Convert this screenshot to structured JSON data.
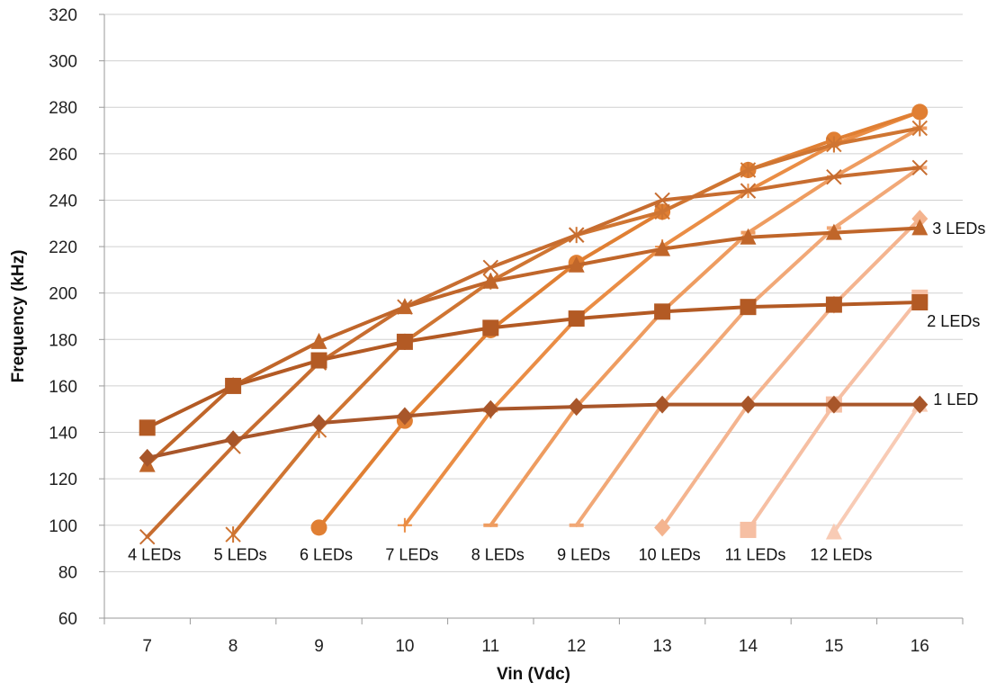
{
  "chart_data": {
    "type": "line",
    "title": "",
    "xlabel": "Vin (Vdc)",
    "ylabel": "Frequency (kHz)",
    "x_ticks": [
      "7",
      "8",
      "9",
      "10",
      "11",
      "12",
      "13",
      "14",
      "15",
      "16"
    ],
    "y_ticks": [
      "60",
      "80",
      "100",
      "120",
      "140",
      "160",
      "180",
      "200",
      "220",
      "240",
      "260",
      "280",
      "300",
      "320"
    ],
    "xlim": [
      6.5,
      16.5
    ],
    "ylim": [
      60,
      320
    ],
    "grid": "horizontal",
    "legend": "none",
    "series": [
      {
        "name": "1 LED",
        "color": "#a8562a",
        "marker": "diamond",
        "x": [
          7,
          8,
          9,
          10,
          11,
          12,
          13,
          14,
          15,
          16
        ],
        "y": [
          129,
          137,
          144,
          147,
          150,
          151,
          152,
          152,
          152,
          152
        ]
      },
      {
        "name": "2 LEDs",
        "color": "#b35a24",
        "marker": "square",
        "x": [
          7,
          8,
          9,
          10,
          11,
          12,
          13,
          14,
          15,
          16
        ],
        "y": [
          142,
          160,
          171,
          179,
          185,
          189,
          192,
          194,
          195,
          196
        ]
      },
      {
        "name": "3 LEDs",
        "color": "#c0662a",
        "marker": "triangle",
        "x": [
          7,
          8,
          9,
          10,
          11,
          12,
          13,
          14,
          15,
          16
        ],
        "y": [
          126,
          160,
          179,
          194,
          205,
          212,
          219,
          224,
          226,
          228
        ]
      },
      {
        "name": "4 LEDs",
        "color": "#c76d30",
        "marker": "x",
        "x": [
          7,
          8,
          9,
          10,
          11,
          12,
          13,
          14,
          15,
          16
        ],
        "y": [
          95,
          134,
          170,
          194,
          211,
          225,
          240,
          244,
          250,
          254
        ]
      },
      {
        "name": "5 LEDs",
        "color": "#cf7532",
        "marker": "asterisk",
        "x": [
          8,
          9,
          10,
          11,
          12,
          13,
          14,
          15,
          16
        ],
        "y": [
          96,
          141,
          179,
          205,
          225,
          235,
          253,
          264,
          271
        ]
      },
      {
        "name": "6 LEDs",
        "color": "#e07f33",
        "marker": "circle",
        "x": [
          9,
          10,
          11,
          12,
          13,
          14,
          15,
          16
        ],
        "y": [
          99,
          145,
          184,
          213,
          235,
          253,
          266,
          278
        ]
      },
      {
        "name": "7 LEDs",
        "color": "#ea8d45",
        "marker": "plus",
        "x": [
          10,
          11,
          12,
          13,
          14,
          15,
          16
        ],
        "y": [
          100,
          149,
          189,
          220,
          244,
          264,
          278
        ]
      },
      {
        "name": "8 LEDs",
        "color": "#ee9c60",
        "marker": "dash",
        "x": [
          11,
          12,
          13,
          14,
          15,
          16
        ],
        "y": [
          100,
          151,
          192,
          226,
          250,
          271
        ]
      },
      {
        "name": "9 LEDs",
        "color": "#f1a877",
        "marker": "dash",
        "x": [
          12,
          13,
          14,
          15,
          16
        ],
        "y": [
          100,
          152,
          194,
          228,
          254
        ]
      },
      {
        "name": "10 LEDs",
        "color": "#f4b48f",
        "marker": "diamond",
        "x": [
          13,
          14,
          15,
          16
        ],
        "y": [
          99,
          152,
          195,
          232
        ]
      },
      {
        "name": "11 LEDs",
        "color": "#f6bfa3",
        "marker": "square",
        "x": [
          14,
          15,
          16
        ],
        "y": [
          98,
          152,
          198
        ]
      },
      {
        "name": "12 LEDs",
        "color": "#f8cbb5",
        "marker": "triangle",
        "x": [
          15,
          16
        ],
        "y": [
          97,
          152
        ]
      }
    ],
    "annotations": [
      {
        "text": "1 LED",
        "anchor": "right of 1 LED series end"
      },
      {
        "text": "2 LEDs",
        "anchor": "right of 2 LEDs series end"
      },
      {
        "text": "3 LEDs",
        "anchor": "right of 3 LEDs series end"
      },
      {
        "text": "4 LEDs",
        "anchor": "below 4 LEDs series start"
      },
      {
        "text": "5 LEDs",
        "anchor": "below 5 LEDs series start"
      },
      {
        "text": "6 LEDs",
        "anchor": "below 6 LEDs series start"
      },
      {
        "text": "7 LEDs",
        "anchor": "below 7 LEDs series start"
      },
      {
        "text": "8 LEDs",
        "anchor": "below 8 LEDs series start"
      },
      {
        "text": "9 LEDs",
        "anchor": "below 9 LEDs series start"
      },
      {
        "text": "10 LEDs",
        "anchor": "below 10 LEDs series start"
      },
      {
        "text": "11 LEDs",
        "anchor": "below 11 LEDs series start"
      },
      {
        "text": "12 LEDs",
        "anchor": "below 12 LEDs series start"
      }
    ]
  }
}
